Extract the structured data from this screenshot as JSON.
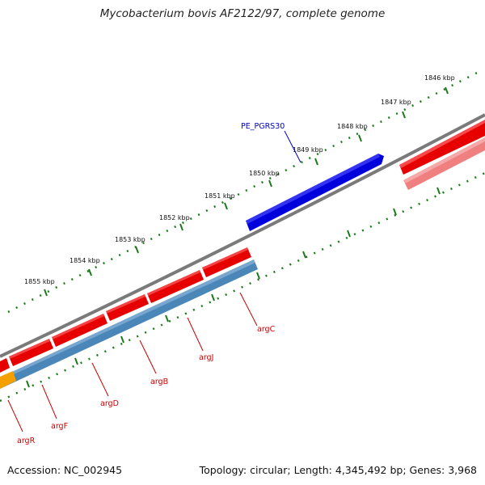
{
  "title": "Mycobacterium bovis AF2122/97, complete genome",
  "footer": {
    "accession": "Accession: NC_002945",
    "summary": "Topology: circular; Length: 4,345,492 bp; Genes: 3,968"
  },
  "colors": {
    "backbone": "#7a7a7a",
    "forward_gene": "#e60000",
    "reverse_gene": "#f08080",
    "pe_pgrs_feature": "#0000dd",
    "operon_feature": "#4a86b8",
    "orange_feature": "#f4a000",
    "label_red": "#cc0000",
    "label_blue": "#0000cc",
    "tick_green": "#1a7a1a"
  },
  "ticks": {
    "unit": "kbp",
    "labels": [
      "1846 kbp",
      "1847 kbp",
      "1848 kbp",
      "1849 kbp",
      "1850 kbp",
      "1851 kbp",
      "1852 kbp",
      "1853 kbp",
      "1854 kbp",
      "1855 kbp"
    ]
  },
  "genes": {
    "pe_pgrs": "PE_PGRS30",
    "arg": [
      "argC",
      "argJ",
      "argB",
      "argD",
      "argF",
      "argR"
    ]
  }
}
